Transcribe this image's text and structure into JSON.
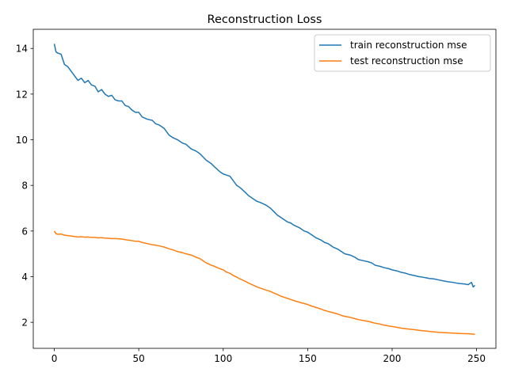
{
  "chart_data": {
    "type": "line",
    "title": "Reconstruction Loss",
    "xlabel": "",
    "ylabel": "",
    "xlim": [
      -12.45,
      261.45
    ],
    "ylim": [
      0.86,
      14.84
    ],
    "xticks": [
      0,
      50,
      100,
      150,
      200,
      250
    ],
    "yticks": [
      2,
      4,
      6,
      8,
      10,
      12,
      14
    ],
    "grid": false,
    "legend_position": "upper right",
    "series": [
      {
        "name": "train reconstruction mse",
        "color": "#1f77b4",
        "x": [
          0,
          1,
          2,
          4,
          6,
          8,
          10,
          12,
          14,
          16,
          18,
          20,
          22,
          24,
          26,
          28,
          30,
          32,
          34,
          36,
          38,
          40,
          42,
          44,
          46,
          48,
          50,
          52,
          55,
          58,
          60,
          62,
          65,
          68,
          70,
          73,
          76,
          78,
          81,
          84,
          86,
          88,
          90,
          93,
          95,
          98,
          100,
          102,
          104,
          106,
          108,
          110,
          113,
          115,
          118,
          120,
          122,
          125,
          128,
          130,
          132,
          134,
          136,
          138,
          140,
          142,
          145,
          148,
          150,
          152,
          155,
          158,
          160,
          162,
          165,
          168,
          170,
          172,
          175,
          178,
          180,
          183,
          186,
          188,
          190,
          193,
          195,
          198,
          200,
          203,
          205,
          208,
          210,
          213,
          216,
          218,
          220,
          222,
          225,
          228,
          230,
          233,
          236,
          238,
          240,
          243,
          245,
          247,
          248,
          249
        ],
        "y": [
          14.2,
          13.85,
          13.8,
          13.75,
          13.3,
          13.2,
          13.0,
          12.8,
          12.6,
          12.7,
          12.5,
          12.6,
          12.4,
          12.35,
          12.1,
          12.2,
          12.0,
          11.9,
          11.95,
          11.75,
          11.7,
          11.7,
          11.5,
          11.45,
          11.3,
          11.2,
          11.2,
          11.0,
          10.9,
          10.85,
          10.7,
          10.65,
          10.5,
          10.2,
          10.1,
          10.0,
          9.85,
          9.8,
          9.6,
          9.5,
          9.4,
          9.25,
          9.1,
          8.95,
          8.8,
          8.6,
          8.5,
          8.45,
          8.4,
          8.2,
          8.0,
          7.9,
          7.7,
          7.55,
          7.4,
          7.3,
          7.25,
          7.15,
          7.0,
          6.85,
          6.7,
          6.6,
          6.5,
          6.4,
          6.35,
          6.25,
          6.15,
          6.0,
          5.95,
          5.85,
          5.7,
          5.6,
          5.5,
          5.45,
          5.3,
          5.2,
          5.1,
          5.0,
          4.95,
          4.85,
          4.75,
          4.7,
          4.65,
          4.6,
          4.5,
          4.45,
          4.4,
          4.35,
          4.3,
          4.25,
          4.2,
          4.15,
          4.1,
          4.05,
          4.0,
          3.98,
          3.95,
          3.92,
          3.9,
          3.85,
          3.82,
          3.78,
          3.75,
          3.72,
          3.7,
          3.68,
          3.65,
          3.75,
          3.55,
          3.62
        ]
      },
      {
        "name": "test reconstruction mse",
        "color": "#ff7f0e",
        "x": [
          0,
          1,
          2,
          4,
          6,
          8,
          10,
          12,
          14,
          16,
          18,
          20,
          22,
          24,
          26,
          28,
          30,
          32,
          34,
          36,
          38,
          40,
          42,
          44,
          46,
          48,
          50,
          52,
          55,
          58,
          60,
          62,
          65,
          68,
          70,
          73,
          76,
          78,
          81,
          84,
          86,
          88,
          90,
          93,
          95,
          98,
          100,
          102,
          104,
          106,
          108,
          110,
          113,
          115,
          118,
          120,
          122,
          125,
          128,
          130,
          132,
          134,
          136,
          138,
          140,
          142,
          145,
          148,
          150,
          152,
          155,
          158,
          160,
          162,
          165,
          168,
          170,
          172,
          175,
          178,
          180,
          183,
          186,
          188,
          190,
          193,
          195,
          198,
          200,
          203,
          205,
          208,
          210,
          213,
          216,
          218,
          220,
          222,
          225,
          228,
          230,
          233,
          236,
          238,
          240,
          243,
          245,
          247,
          248,
          249
        ],
        "y": [
          6.0,
          5.88,
          5.86,
          5.87,
          5.82,
          5.8,
          5.78,
          5.76,
          5.74,
          5.75,
          5.73,
          5.74,
          5.72,
          5.72,
          5.7,
          5.71,
          5.69,
          5.68,
          5.67,
          5.67,
          5.66,
          5.65,
          5.62,
          5.6,
          5.58,
          5.55,
          5.55,
          5.5,
          5.45,
          5.4,
          5.38,
          5.35,
          5.3,
          5.22,
          5.18,
          5.1,
          5.05,
          5.0,
          4.95,
          4.85,
          4.8,
          4.7,
          4.6,
          4.5,
          4.45,
          4.35,
          4.3,
          4.2,
          4.15,
          4.05,
          3.98,
          3.9,
          3.8,
          3.72,
          3.62,
          3.55,
          3.5,
          3.42,
          3.35,
          3.28,
          3.22,
          3.15,
          3.1,
          3.05,
          3.0,
          2.95,
          2.88,
          2.82,
          2.78,
          2.72,
          2.65,
          2.58,
          2.52,
          2.48,
          2.42,
          2.36,
          2.3,
          2.26,
          2.22,
          2.16,
          2.12,
          2.08,
          2.04,
          2.0,
          1.96,
          1.92,
          1.88,
          1.84,
          1.82,
          1.78,
          1.75,
          1.72,
          1.7,
          1.68,
          1.65,
          1.63,
          1.62,
          1.6,
          1.58,
          1.56,
          1.55,
          1.54,
          1.53,
          1.52,
          1.51,
          1.5,
          1.5,
          1.49,
          1.48,
          1.48
        ]
      }
    ]
  }
}
